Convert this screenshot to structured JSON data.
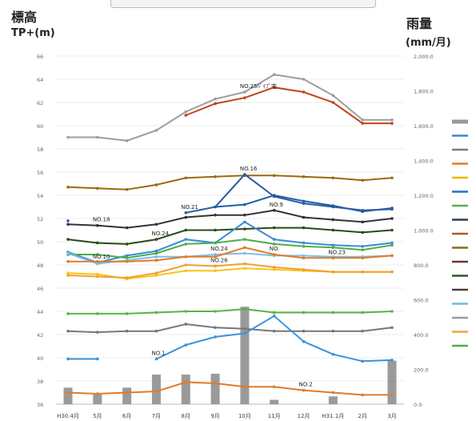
{
  "header": {
    "left_title": "標高",
    "left_unit": "TP+(m)",
    "right_title": "雨量",
    "right_unit": "(mm/月)"
  },
  "chart_data": {
    "type": "line",
    "categories": [
      "H30.4月",
      "5月",
      "6月",
      "7月",
      "8月",
      "9月",
      "10月",
      "11月",
      "12月",
      "H31.1月",
      "2月",
      "3月"
    ],
    "y_left": {
      "ylim": [
        36,
        66
      ],
      "ticks": [
        36,
        38,
        40,
        42,
        44,
        46,
        48,
        50,
        52,
        54,
        56,
        58,
        60,
        62,
        64,
        66
      ]
    },
    "y_right": {
      "ylim": [
        0,
        2000
      ],
      "ticks": [
        "0.0",
        "200.0",
        "400.0",
        "600.0",
        "800.0",
        "1,000.0",
        "1,200.0",
        "1,400.0",
        "1,600.0",
        "1,800.0",
        "2,000.0"
      ]
    },
    "legend_colors": [
      "#999999",
      "#3a87d6",
      "#7a7a7a",
      "#e07b2a",
      "#f0b400",
      "#2e6fb8",
      "#59b443",
      "#2b3a67",
      "#b05a2a",
      "#8a6a10",
      "#6b3a2a",
      "#2a5a2a",
      "#444444",
      "#6fb5e6",
      "#9a9a9a",
      "#f2a33a",
      "#4cae4c"
    ],
    "series": [
      {
        "name": "",
        "color": "#9e9e9e",
        "values": [
          59.0,
          59.0,
          58.7,
          59.6,
          61.2,
          62.3,
          62.9,
          64.4,
          64.0,
          62.6,
          60.5,
          60.5
        ]
      },
      {
        "name": "",
        "color": "#c0441c",
        "values": [
          null,
          null,
          null,
          null,
          60.9,
          61.9,
          62.4,
          63.3,
          62.9,
          62.0,
          60.2,
          60.2
        ]
      },
      {
        "name": "",
        "color": "#9a6a10",
        "values": [
          54.7,
          54.6,
          54.5,
          54.9,
          55.5,
          55.6,
          55.7,
          55.7,
          55.6,
          55.5,
          55.3,
          55.5
        ]
      },
      {
        "name": "",
        "color": "#1f5fa8",
        "values": [
          null,
          null,
          null,
          null,
          52.5,
          53.0,
          53.2,
          54.0,
          53.5,
          53.1,
          52.6,
          52.9
        ]
      },
      {
        "name": "",
        "color": "#2c5aa0",
        "values": [
          51.8,
          null,
          null,
          null,
          null,
          53.0,
          55.8,
          53.9,
          53.3,
          53.0,
          52.7,
          52.8
        ]
      },
      {
        "name": "",
        "color": "#333333",
        "values": [
          51.5,
          51.4,
          51.2,
          51.5,
          52.1,
          52.3,
          52.3,
          52.7,
          52.1,
          51.9,
          51.7,
          52.0
        ]
      },
      {
        "name": "",
        "color": "#2a4a1a",
        "values": [
          50.2,
          49.9,
          49.8,
          50.2,
          51.0,
          51.0,
          51.1,
          51.2,
          51.2,
          51.0,
          50.8,
          51.0
        ]
      },
      {
        "name": "",
        "color": "#3a8ad8",
        "values": [
          49.1,
          48.2,
          48.8,
          49.2,
          50.2,
          49.9,
          51.7,
          50.2,
          49.9,
          49.7,
          49.6,
          49.9
        ]
      },
      {
        "name": "",
        "color": "#4cae4c",
        "values": [
          48.9,
          48.9,
          48.6,
          49.0,
          49.8,
          49.9,
          50.2,
          49.8,
          49.6,
          49.5,
          49.3,
          49.7
        ]
      },
      {
        "name": "",
        "color": "#7fbde8",
        "values": [
          49.0,
          48.1,
          48.4,
          48.7,
          48.7,
          48.9,
          49.0,
          48.8,
          48.8,
          48.7,
          48.7,
          48.8
        ]
      },
      {
        "name": "",
        "color": "#e07b2a",
        "values": [
          48.3,
          48.3,
          48.3,
          48.4,
          48.7,
          48.7,
          49.5,
          48.9,
          48.6,
          48.6,
          48.6,
          48.8
        ]
      },
      {
        "name": "",
        "color": "#f5c518",
        "values": [
          47.3,
          47.2,
          46.8,
          47.1,
          47.5,
          47.5,
          47.7,
          47.6,
          47.5,
          47.4,
          47.4,
          47.4
        ]
      },
      {
        "name": "",
        "color": "#f0a030",
        "values": [
          47.1,
          47.0,
          46.9,
          47.3,
          48.0,
          47.9,
          48.1,
          47.8,
          47.6,
          47.4,
          47.4,
          47.4
        ]
      },
      {
        "name": "",
        "color": "#59b443",
        "values": [
          43.8,
          43.8,
          43.8,
          43.9,
          44.0,
          44.0,
          44.2,
          43.9,
          43.9,
          43.9,
          43.9,
          44.0
        ]
      },
      {
        "name": "",
        "color": "#777777",
        "values": [
          42.3,
          42.2,
          42.3,
          42.3,
          42.9,
          42.6,
          42.5,
          42.3,
          42.3,
          42.3,
          42.3,
          42.6
        ]
      },
      {
        "name": "",
        "color": "#3a92dc",
        "values": [
          39.9,
          39.9,
          null,
          39.9,
          41.1,
          41.8,
          42.1,
          43.6,
          41.4,
          40.3,
          39.7,
          39.8
        ]
      },
      {
        "name": "",
        "color": "#e07b2a",
        "values": [
          37.0,
          36.9,
          37.0,
          37.1,
          37.9,
          37.8,
          37.5,
          37.5,
          37.2,
          37.0,
          36.8,
          36.8
        ]
      }
    ],
    "bars": {
      "name": "",
      "color": "#9a9a9a",
      "axis": "right",
      "values": [
        95,
        55,
        95,
        170,
        170,
        175,
        560,
        25,
        0,
        45,
        0,
        250
      ]
    },
    "annotations": [
      {
        "text": "NO.25ﾊﾟｲﾌﾟ宅",
        "series": 0,
        "index": 6
      },
      {
        "text": "NO.16",
        "series": 4,
        "index": 6
      },
      {
        "text": "NO.21",
        "series": 3,
        "index": 4
      },
      {
        "text": "NO.18",
        "series": 5,
        "index": 1
      },
      {
        "text": "NO.9",
        "series": 5,
        "index": 7
      },
      {
        "text": "NO.24",
        "series": 6,
        "index": 3
      },
      {
        "text": "NO.10",
        "series": 7,
        "index": 1
      },
      {
        "text": "NO.24",
        "series": 9,
        "index": 5
      },
      {
        "text": "NO.",
        "series": 10,
        "index": 7
      },
      {
        "text": "NO.23",
        "series": 10,
        "index": 9
      },
      {
        "text": "NO.26",
        "series": 12,
        "index": 5
      },
      {
        "text": "NO.1",
        "series": 15,
        "index": 3
      },
      {
        "text": "NO.2",
        "series": 16,
        "index": 8
      }
    ],
    "grid": true,
    "legend": "right"
  }
}
